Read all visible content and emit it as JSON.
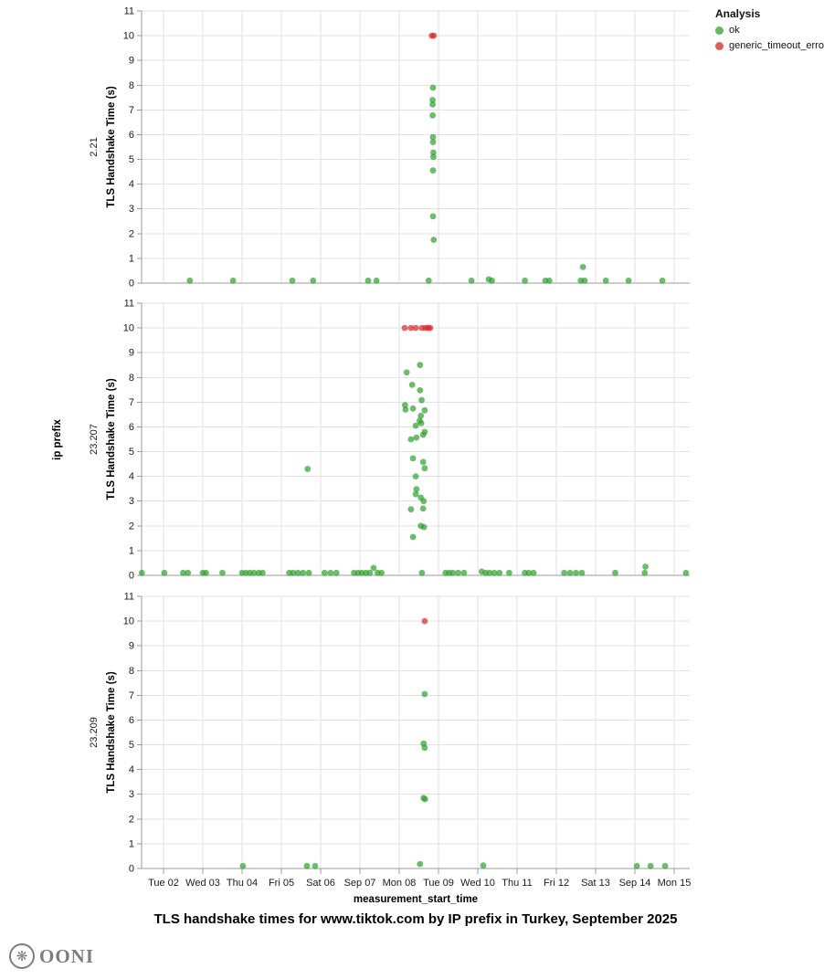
{
  "title": "TLS handshake times for www.tiktok.com by IP prefix in Turkey, September 2025",
  "footer": {
    "brand": "OONI",
    "icon": "flower-mark-icon",
    "icon_glyph": "❋"
  },
  "legend": {
    "title": "Analysis",
    "items": [
      {
        "label": "ok",
        "color": "#2ca02c"
      },
      {
        "label": "generic_timeout_error",
        "color": "#d62728"
      }
    ]
  },
  "chart_data": {
    "type": "scatter",
    "row_dimension_label": "ip prefix",
    "x_label": "measurement_start_time",
    "y_label": "TLS Handshake Time (s)",
    "y_domain": [
      0,
      11
    ],
    "y_ticks": [
      0,
      1,
      2,
      3,
      4,
      5,
      6,
      7,
      8,
      9,
      10,
      11
    ],
    "grid": true,
    "legend_position": "top-right",
    "x_ticks": [
      {
        "day": 2,
        "label": "Tue 02"
      },
      {
        "day": 3,
        "label": "Wed 03"
      },
      {
        "day": 4,
        "label": "Thu 04"
      },
      {
        "day": 5,
        "label": "Fri 05"
      },
      {
        "day": 6,
        "label": "Sat 06"
      },
      {
        "day": 7,
        "label": "Sep 07"
      },
      {
        "day": 8,
        "label": "Mon 08"
      },
      {
        "day": 9,
        "label": "Tue 09"
      },
      {
        "day": 10,
        "label": "Wed 10"
      },
      {
        "day": 11,
        "label": "Thu 11"
      },
      {
        "day": 12,
        "label": "Fri 12"
      },
      {
        "day": 13,
        "label": "Sat 13"
      },
      {
        "day": 14,
        "label": "Sep 14"
      },
      {
        "day": 15,
        "label": "Mon 15"
      }
    ],
    "facets": [
      {
        "row": "2.21",
        "series": [
          {
            "name": "ok",
            "points": [
              [
                2.67,
                0.1
              ],
              [
                3.77,
                0.1
              ],
              [
                5.28,
                0.1
              ],
              [
                5.81,
                0.1
              ],
              [
                7.21,
                0.1
              ],
              [
                7.42,
                0.1
              ],
              [
                8.75,
                0.1
              ],
              [
                9.84,
                0.1
              ],
              [
                10.28,
                0.15
              ],
              [
                10.36,
                0.1
              ],
              [
                11.2,
                0.1
              ],
              [
                11.72,
                0.1
              ],
              [
                11.82,
                0.1
              ],
              [
                12.62,
                0.1
              ],
              [
                12.72,
                0.1
              ],
              [
                12.68,
                0.65
              ],
              [
                13.26,
                0.1
              ],
              [
                13.84,
                0.1
              ],
              [
                14.7,
                0.1
              ],
              [
                8.86,
                7.9
              ],
              [
                8.85,
                7.4
              ],
              [
                8.85,
                7.22
              ],
              [
                8.85,
                6.78
              ],
              [
                8.86,
                5.9
              ],
              [
                8.86,
                5.7
              ],
              [
                8.87,
                5.28
              ],
              [
                8.87,
                5.1
              ],
              [
                8.86,
                4.55
              ],
              [
                8.86,
                2.7
              ],
              [
                8.88,
                1.75
              ]
            ]
          },
          {
            "name": "generic_timeout_error",
            "points": [
              [
                8.83,
                10
              ],
              [
                8.88,
                10
              ]
            ]
          }
        ]
      },
      {
        "row": "23.207",
        "series": [
          {
            "name": "ok",
            "points": [
              [
                8.53,
                8.5
              ],
              [
                8.19,
                8.2
              ],
              [
                8.33,
                7.7
              ],
              [
                8.53,
                7.48
              ],
              [
                8.57,
                7.08
              ],
              [
                8.15,
                6.88
              ],
              [
                8.16,
                6.7
              ],
              [
                8.35,
                6.74
              ],
              [
                8.65,
                6.67
              ],
              [
                8.55,
                6.45
              ],
              [
                8.52,
                6.25
              ],
              [
                8.56,
                6.15
              ],
              [
                8.42,
                6.05
              ],
              [
                8.65,
                5.8
              ],
              [
                8.61,
                5.68
              ],
              [
                8.44,
                5.57
              ],
              [
                8.3,
                5.5
              ],
              [
                8.35,
                4.73
              ],
              [
                8.61,
                4.58
              ],
              [
                8.65,
                4.33
              ],
              [
                8.42,
                4.0
              ],
              [
                8.44,
                3.48
              ],
              [
                8.42,
                3.28
              ],
              [
                8.55,
                3.14
              ],
              [
                8.62,
                3.0
              ],
              [
                8.3,
                2.67
              ],
              [
                8.61,
                2.7
              ],
              [
                8.55,
                2.0
              ],
              [
                8.63,
                1.95
              ],
              [
                8.35,
                1.55
              ],
              [
                5.67,
                4.3
              ],
              [
                1.45,
                0.1
              ],
              [
                2.02,
                0.1
              ],
              [
                2.5,
                0.1
              ],
              [
                2.62,
                0.1
              ],
              [
                3.0,
                0.1
              ],
              [
                3.08,
                0.1
              ],
              [
                3.5,
                0.1
              ],
              [
                4.0,
                0.1
              ],
              [
                4.1,
                0.1
              ],
              [
                4.2,
                0.1
              ],
              [
                4.3,
                0.1
              ],
              [
                4.42,
                0.1
              ],
              [
                4.52,
                0.1
              ],
              [
                5.2,
                0.1
              ],
              [
                5.3,
                0.1
              ],
              [
                5.42,
                0.1
              ],
              [
                5.55,
                0.1
              ],
              [
                5.7,
                0.1
              ],
              [
                6.1,
                0.1
              ],
              [
                6.25,
                0.1
              ],
              [
                6.4,
                0.1
              ],
              [
                6.85,
                0.1
              ],
              [
                6.95,
                0.1
              ],
              [
                7.05,
                0.1
              ],
              [
                7.15,
                0.1
              ],
              [
                7.25,
                0.1
              ],
              [
                7.35,
                0.3
              ],
              [
                7.45,
                0.1
              ],
              [
                7.55,
                0.1
              ],
              [
                8.58,
                0.1
              ],
              [
                9.18,
                0.1
              ],
              [
                9.27,
                0.1
              ],
              [
                9.36,
                0.1
              ],
              [
                9.5,
                0.1
              ],
              [
                9.65,
                0.1
              ],
              [
                10.1,
                0.15
              ],
              [
                10.2,
                0.1
              ],
              [
                10.3,
                0.1
              ],
              [
                10.42,
                0.1
              ],
              [
                10.55,
                0.1
              ],
              [
                10.8,
                0.1
              ],
              [
                11.2,
                0.1
              ],
              [
                11.3,
                0.1
              ],
              [
                11.42,
                0.1
              ],
              [
                12.2,
                0.1
              ],
              [
                12.35,
                0.1
              ],
              [
                12.5,
                0.1
              ],
              [
                12.65,
                0.1
              ],
              [
                13.5,
                0.1
              ],
              [
                14.25,
                0.1
              ],
              [
                14.27,
                0.35
              ],
              [
                15.3,
                0.1
              ]
            ]
          },
          {
            "name": "generic_timeout_error",
            "points": [
              [
                8.14,
                10
              ],
              [
                8.3,
                10
              ],
              [
                8.42,
                10
              ],
              [
                8.58,
                10
              ],
              [
                8.67,
                10
              ],
              [
                8.74,
                10
              ],
              [
                8.79,
                10
              ]
            ]
          }
        ]
      },
      {
        "row": "23.209",
        "series": [
          {
            "name": "ok",
            "points": [
              [
                8.65,
                7.05
              ],
              [
                8.62,
                5.05
              ],
              [
                8.65,
                4.88
              ],
              [
                8.62,
                2.85
              ],
              [
                8.66,
                2.8
              ],
              [
                4.02,
                0.1
              ],
              [
                5.65,
                0.1
              ],
              [
                5.86,
                0.1
              ],
              [
                8.53,
                0.18
              ],
              [
                10.14,
                0.12
              ],
              [
                14.05,
                0.1
              ],
              [
                14.4,
                0.1
              ],
              [
                14.77,
                0.1
              ]
            ]
          },
          {
            "name": "generic_timeout_error",
            "points": [
              [
                8.65,
                10
              ]
            ]
          }
        ]
      }
    ]
  }
}
